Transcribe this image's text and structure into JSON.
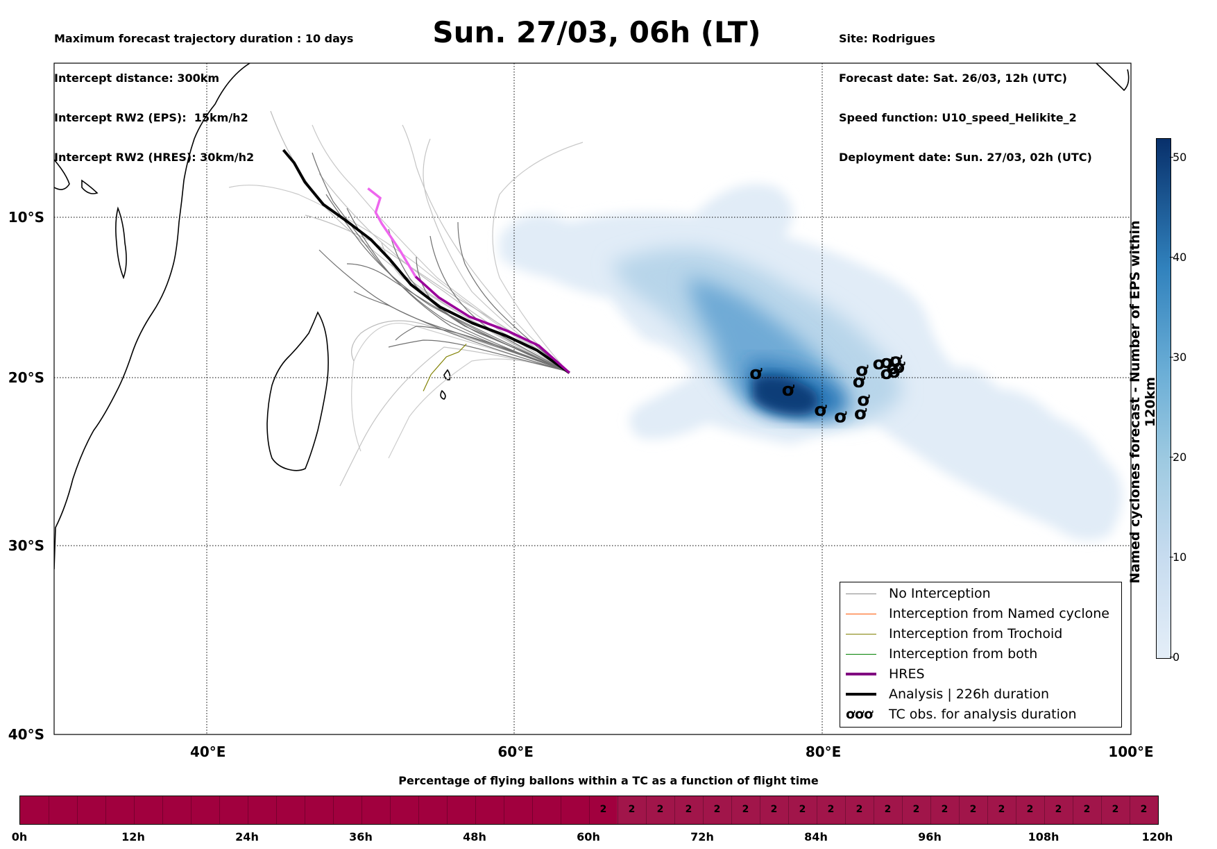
{
  "header_left": [
    "Maximum forecast trajectory duration : 10 days",
    "Intercept distance: 300km",
    "Intercept RW2 (EPS):  15km/h2",
    "Intercept RW2 (HRES): 30km/h2"
  ],
  "header_right": [
    "Site: Rodrigues",
    "Forecast date: Sat. 26/03, 12h (UTC)",
    "Speed function: U10_speed_Helikite_2",
    "Deployment date: Sun. 27/03, 02h (UTC)"
  ],
  "title": "Sun. 27/03, 06h (LT)",
  "map": {
    "lon_range": [
      30,
      100
    ],
    "lat_range": [
      -40,
      2
    ],
    "lon_ticks": [
      {
        "value": 40,
        "label": "40°E"
      },
      {
        "value": 60,
        "label": "60°E"
      },
      {
        "value": 80,
        "label": "80°E"
      },
      {
        "value": 100,
        "label": "100°E"
      }
    ],
    "lat_ticks": [
      {
        "value": -10,
        "label": "10°S"
      },
      {
        "value": -20,
        "label": "20°S"
      },
      {
        "value": -30,
        "label": "30°S"
      },
      {
        "value": -40,
        "label": "40°S"
      }
    ],
    "analysis_track": [
      [
        44.9,
        -5.8
      ],
      [
        45.6,
        -6.6
      ],
      [
        46.3,
        -7.8
      ],
      [
        47.5,
        -9.2
      ],
      [
        49.1,
        -10.3
      ],
      [
        50.6,
        -11.4
      ],
      [
        51.8,
        -12.6
      ],
      [
        53.2,
        -14.2
      ],
      [
        55.1,
        -15.6
      ],
      [
        57.2,
        -16.6
      ],
      [
        59.4,
        -17.4
      ],
      [
        61.4,
        -18.3
      ],
      [
        63.5,
        -19.7
      ]
    ],
    "hres_track": [
      [
        50.4,
        -8.2
      ],
      [
        51.2,
        -8.8
      ],
      [
        50.9,
        -9.7
      ],
      [
        51.3,
        -10.4
      ],
      [
        51.8,
        -11.1
      ],
      [
        52.5,
        -12.1
      ],
      [
        53.5,
        -13.7
      ],
      [
        55.0,
        -15.0
      ],
      [
        57.0,
        -16.2
      ],
      [
        59.5,
        -17.1
      ],
      [
        61.5,
        -18.0
      ],
      [
        63.5,
        -19.7
      ]
    ],
    "trochoid_track": [
      [
        54.0,
        -20.8
      ],
      [
        54.5,
        -19.8
      ],
      [
        55.5,
        -18.7
      ],
      [
        56.3,
        -18.4
      ],
      [
        56.8,
        -17.9
      ]
    ],
    "tc_obs": [
      [
        75.6,
        -19.7
      ],
      [
        77.7,
        -20.7
      ],
      [
        79.8,
        -21.9
      ],
      [
        81.1,
        -22.3
      ],
      [
        82.3,
        -20.2
      ],
      [
        82.5,
        -19.5
      ],
      [
        82.4,
        -22.1
      ],
      [
        82.6,
        -21.3
      ],
      [
        83.6,
        -19.1
      ],
      [
        84.1,
        -19.0
      ],
      [
        84.5,
        -19.4
      ],
      [
        84.1,
        -19.7
      ],
      [
        84.6,
        -19.6
      ],
      [
        84.9,
        -19.3
      ],
      [
        84.7,
        -18.9
      ]
    ]
  },
  "colorbar": {
    "label": "Named cyclones forecast - Number of EPS within 120km",
    "range": [
      0,
      52
    ],
    "ticks": [
      "0",
      "10",
      "20",
      "30",
      "40",
      "50"
    ]
  },
  "legend": [
    {
      "label": "No Interception",
      "color": "#888888",
      "width": 1
    },
    {
      "label": "Interception from Named cyclone",
      "color": "#ff5500",
      "width": 1
    },
    {
      "label": "Interception from Trochoid",
      "color": "#808000",
      "width": 1
    },
    {
      "label": "Interception from both",
      "color": "#008000",
      "width": 1
    },
    {
      "label": "HRES",
      "color": "#800080",
      "width": 4
    },
    {
      "label": "Analysis | 226h duration",
      "color": "#000000",
      "width": 4
    },
    {
      "label": "TC obs. for analysis duration",
      "symbol": "ơơơ"
    }
  ],
  "bottom": {
    "title": "Percentage of flying ballons within a TC as a function of flight time",
    "time_ticks": [
      "0h",
      "12h",
      "24h",
      "36h",
      "48h",
      "60h",
      "72h",
      "84h",
      "96h",
      "108h",
      "120h"
    ],
    "values_from_63h_to_120h_step3h": [
      "2",
      "2",
      "2",
      "2",
      "2",
      "2",
      "2",
      "2",
      "2",
      "2",
      "2",
      "2",
      "2",
      "2",
      "2",
      "2",
      "2",
      "2",
      "2",
      "2"
    ]
  },
  "colors": {
    "bar_zero": "#a1003e",
    "bar_value": "#a1154a",
    "hres": "#800080",
    "analysis": "#000000",
    "trajectory_gray": "#808080"
  }
}
